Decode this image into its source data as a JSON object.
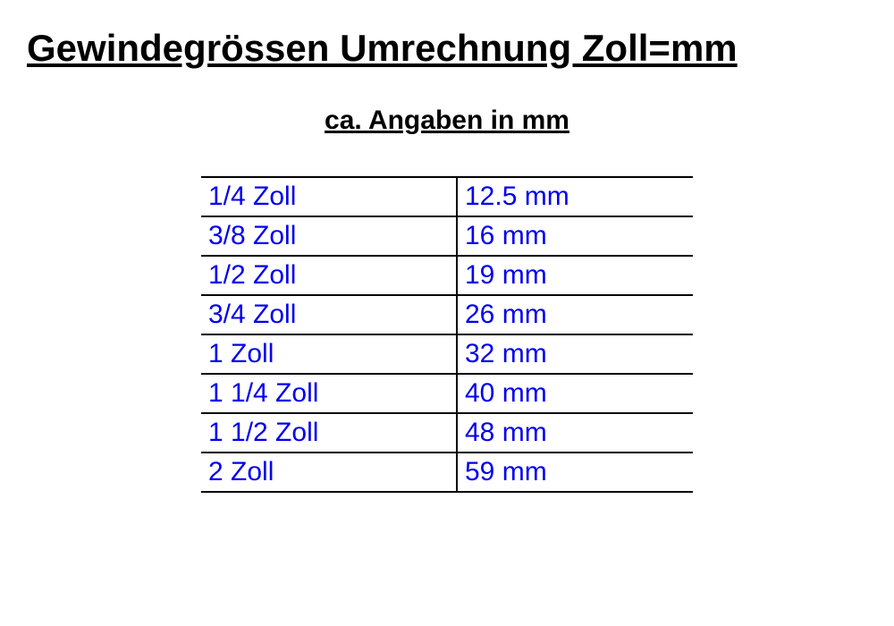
{
  "title": "Gewindegrössen Umrechnung Zoll=mm",
  "subtitle": "ca. Angaben in mm",
  "table": {
    "type": "table",
    "text_color": "#0000ee",
    "border_color": "#000000",
    "border_width": 2,
    "font_size": 30,
    "columns": [
      "zoll",
      "mm"
    ],
    "rows": [
      {
        "zoll": "1/4 Zoll",
        "mm": "12.5 mm"
      },
      {
        "zoll": "3/8 Zoll",
        "mm": "16 mm"
      },
      {
        "zoll": "1/2 Zoll",
        "mm": "19 mm"
      },
      {
        "zoll": "3/4 Zoll",
        "mm": "26 mm"
      },
      {
        "zoll": "1 Zoll",
        "mm": "32 mm"
      },
      {
        "zoll": "1 1/4 Zoll",
        "mm": "40 mm"
      },
      {
        "zoll": "1 1/2 Zoll",
        "mm": "48 mm"
      },
      {
        "zoll": "2 Zoll",
        "mm": "59 mm"
      }
    ]
  },
  "styling": {
    "background_color": "#ffffff",
    "title_color": "#000000",
    "title_fontsize": 42,
    "subtitle_color": "#000000",
    "subtitle_fontsize": 30
  }
}
